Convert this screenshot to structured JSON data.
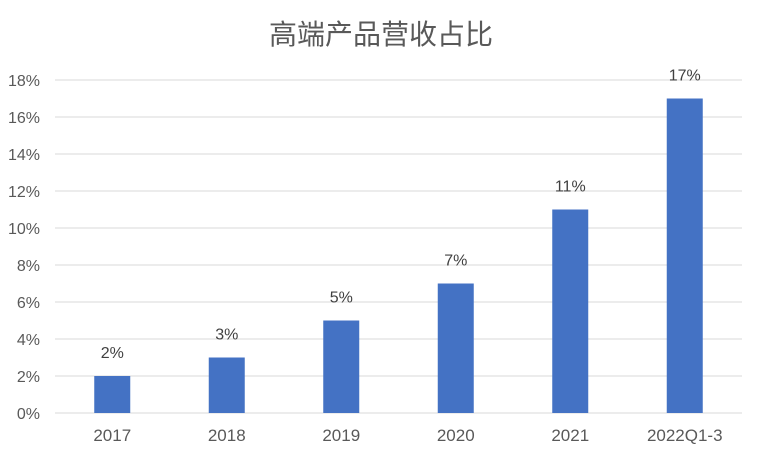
{
  "chart_data": {
    "type": "bar",
    "title": "高端产品营收占比",
    "categories": [
      "2017",
      "2018",
      "2019",
      "2020",
      "2021",
      "2022Q1-3"
    ],
    "values": [
      2,
      3,
      5,
      7,
      11,
      17
    ],
    "data_labels": [
      "2%",
      "3%",
      "5%",
      "7%",
      "11%",
      "17%"
    ],
    "ylim": [
      0,
      18
    ],
    "yticks": [
      "0%",
      "2%",
      "4%",
      "6%",
      "8%",
      "10%",
      "12%",
      "14%",
      "16%",
      "18%"
    ],
    "grid": true,
    "legend": "none",
    "bar_color": "#4472C4"
  }
}
